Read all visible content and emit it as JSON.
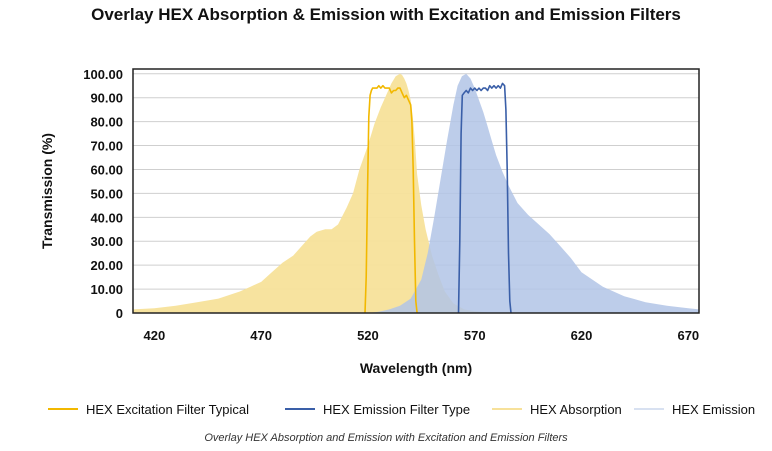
{
  "chart_data": {
    "type": "area",
    "title": "Overlay HEX Absorption & Emission with Excitation and Emission Filters",
    "xlabel": "Wavelength (nm)",
    "ylabel": "Transmission (%)",
    "xlim": [
      410,
      675
    ],
    "ylim": [
      0,
      102
    ],
    "x_ticks": [
      420,
      470,
      520,
      570,
      620,
      670
    ],
    "y_ticks": [
      0,
      10,
      20,
      30,
      40,
      50,
      60,
      70,
      80,
      90,
      100
    ],
    "y_tick_labels": [
      "0",
      "10.00",
      "20.00",
      "30.00",
      "40.00",
      "50.00",
      "60.00",
      "70.00",
      "80.00",
      "90.00",
      "100.00"
    ],
    "grid": "horizontal",
    "legend_position": "bottom",
    "series": [
      {
        "name": "HEX Excitation Filter Typical",
        "style": "line",
        "color": "#f2b800",
        "x": [
          518.6,
          519.2,
          519.8,
          520.4,
          521,
          521.6,
          522.2,
          522.8,
          523.4,
          524.2,
          525.1,
          526,
          527,
          528,
          529,
          530,
          531,
          532,
          533,
          534,
          535,
          536,
          537,
          538,
          539,
          540,
          540.6,
          541.2,
          541.8,
          542.4,
          543
        ],
        "y": [
          0,
          15,
          50,
          82,
          91,
          93,
          94,
          94,
          94,
          94,
          95,
          94,
          95,
          94,
          94,
          94,
          92,
          93,
          93,
          94,
          94,
          92,
          90,
          91,
          89,
          87,
          80,
          60,
          30,
          5,
          0
        ]
      },
      {
        "name": "HEX Emission Filter Type",
        "style": "line",
        "color": "#3a5fa8",
        "x": [
          562.4,
          563,
          563.6,
          564.2,
          565,
          566,
          567,
          568,
          569,
          570,
          571,
          572,
          573,
          574,
          575,
          576,
          577,
          578,
          579,
          580,
          581,
          582,
          583,
          584,
          584.6,
          585.2,
          585.8,
          586.4,
          587
        ],
        "y": [
          0,
          30,
          75,
          91,
          92,
          93,
          92,
          94,
          93,
          94,
          93,
          94,
          93,
          94,
          94,
          93,
          95,
          94,
          95,
          94,
          95,
          94,
          96,
          95,
          85,
          60,
          25,
          5,
          0
        ]
      },
      {
        "name": "HEX Absorption",
        "style": "area",
        "color": "#f7e19a",
        "x": [
          410,
          420,
          430,
          440,
          450,
          460,
          465,
          470,
          475,
          480,
          485,
          490,
          493,
          496,
          500,
          503,
          506,
          510,
          513,
          516,
          520,
          523,
          526,
          529,
          531,
          533,
          535,
          536,
          537,
          538,
          539,
          540,
          541,
          542,
          543,
          545,
          547,
          550,
          553,
          556,
          560,
          565,
          570,
          575,
          580
        ],
        "y": [
          1.5,
          2,
          3,
          4.5,
          6,
          9,
          11,
          13,
          17,
          21,
          24,
          29,
          32,
          34,
          35,
          35,
          37,
          44,
          50,
          60,
          70,
          79,
          86,
          92,
          96,
          99,
          100,
          99.5,
          98,
          96,
          93,
          89,
          82,
          72,
          58,
          45,
          35,
          24,
          16,
          9,
          4,
          1.5,
          0.7,
          0.3,
          0
        ]
      },
      {
        "name": "HEX Emission",
        "style": "area",
        "color": "#b2c4e6",
        "x": [
          520,
          525,
          530,
          535,
          540,
          545,
          548,
          551,
          554,
          557,
          560,
          562,
          564,
          566,
          568,
          570,
          572,
          574,
          576,
          578,
          580,
          583,
          586,
          590,
          595,
          600,
          605,
          610,
          615,
          620,
          630,
          640,
          650,
          660,
          670,
          675
        ],
        "y": [
          0,
          0.5,
          1.5,
          3,
          6,
          14,
          25,
          40,
          56,
          72,
          87,
          95,
          99,
          100,
          98,
          94,
          89,
          84,
          78,
          72,
          66,
          59,
          53,
          46,
          41,
          37,
          33,
          28,
          23,
          17,
          11,
          7,
          4.5,
          3,
          2,
          1.5
        ]
      }
    ],
    "caption": "Overlay HEX Absorption and Emission with Excitation and Emission Filters"
  }
}
